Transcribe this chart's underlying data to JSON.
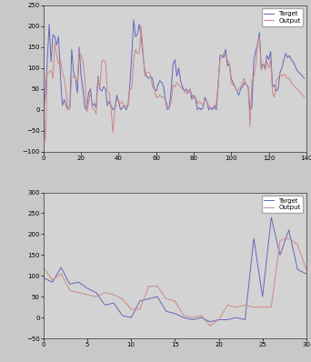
{
  "fig_bg": "#c8c8c8",
  "plot1_bg": "#d3d3d3",
  "plot2_bg": "#d3d3d3",
  "target_color": "#6666bb",
  "output_color": "#cc8888",
  "plot1_xlim": [
    0,
    140
  ],
  "plot1_ylim": [
    -100,
    250
  ],
  "plot1_xticks": [
    0,
    20,
    40,
    60,
    80,
    100,
    120,
    140
  ],
  "plot1_yticks": [
    -100,
    -50,
    0,
    50,
    100,
    150,
    200,
    250
  ],
  "plot2_xlim": [
    0,
    30
  ],
  "plot2_ylim": [
    -50,
    300
  ],
  "plot2_xticks": [
    0,
    5,
    10,
    15,
    20,
    25,
    30
  ],
  "plot2_yticks": [
    -50,
    0,
    50,
    100,
    150,
    200,
    250,
    300
  ],
  "legend_target": "Target",
  "legend_output": "Output",
  "plot1_target": [
    0,
    40,
    120,
    205,
    115,
    180,
    175,
    155,
    175,
    80,
    10,
    25,
    10,
    0,
    5,
    145,
    90,
    75,
    40,
    150,
    80,
    50,
    5,
    0,
    40,
    50,
    10,
    15,
    5,
    80,
    50,
    45,
    55,
    50,
    10,
    20,
    10,
    0,
    5,
    35,
    20,
    0,
    5,
    10,
    0,
    10,
    60,
    130,
    215,
    175,
    180,
    205,
    175,
    130,
    90,
    80,
    75,
    80,
    75,
    50,
    45,
    60,
    70,
    65,
    55,
    20,
    0,
    5,
    50,
    110,
    120,
    80,
    100,
    70,
    55,
    45,
    50,
    40,
    50,
    25,
    35,
    25,
    0,
    5,
    0,
    5,
    30,
    20,
    0,
    5,
    0,
    10,
    0,
    55,
    130,
    130,
    125,
    145,
    105,
    110,
    75,
    65,
    55,
    45,
    35,
    50,
    55,
    65,
    60,
    55,
    0,
    5,
    120,
    140,
    155,
    185,
    100,
    110,
    100,
    130,
    120,
    140,
    55,
    60,
    45,
    50,
    90,
    100,
    120,
    135,
    125,
    130,
    120,
    115,
    105,
    95,
    90,
    85,
    80,
    75
  ],
  "plot1_output": [
    0,
    -75,
    90,
    90,
    95,
    75,
    160,
    130,
    110,
    120,
    90,
    75,
    45,
    0,
    5,
    80,
    80,
    75,
    65,
    140,
    130,
    115,
    75,
    -5,
    15,
    45,
    5,
    0,
    -10,
    75,
    55,
    115,
    120,
    115,
    45,
    40,
    0,
    -55,
    0,
    25,
    20,
    15,
    20,
    5,
    10,
    10,
    50,
    50,
    120,
    145,
    135,
    135,
    200,
    140,
    80,
    90,
    90,
    85,
    55,
    50,
    30,
    30,
    35,
    30,
    30,
    25,
    10,
    5,
    20,
    60,
    55,
    65,
    60,
    55,
    50,
    45,
    40,
    40,
    50,
    35,
    30,
    30,
    15,
    20,
    15,
    10,
    25,
    20,
    10,
    5,
    5,
    5,
    15,
    60,
    120,
    125,
    135,
    130,
    120,
    110,
    65,
    60,
    55,
    45,
    50,
    55,
    65,
    75,
    60,
    55,
    -40,
    70,
    80,
    105,
    160,
    175,
    95,
    110,
    95,
    115,
    100,
    120,
    40,
    30,
    70,
    75,
    85,
    80,
    85,
    80,
    75,
    75,
    65,
    60,
    55,
    50,
    45,
    40,
    35,
    30
  ],
  "plot2_target": [
    95,
    85,
    120,
    80,
    85,
    70,
    60,
    30,
    35,
    5,
    0,
    40,
    45,
    50,
    15,
    10,
    0,
    -5,
    0,
    -10,
    -5,
    -5,
    0,
    -5,
    190,
    50,
    240,
    150,
    210,
    115,
    105
  ],
  "plot2_output": [
    120,
    90,
    105,
    65,
    60,
    55,
    50,
    60,
    55,
    45,
    20,
    20,
    75,
    75,
    45,
    40,
    5,
    0,
    5,
    -20,
    -5,
    30,
    25,
    30,
    25,
    25,
    25,
    185,
    190,
    175,
    115
  ]
}
